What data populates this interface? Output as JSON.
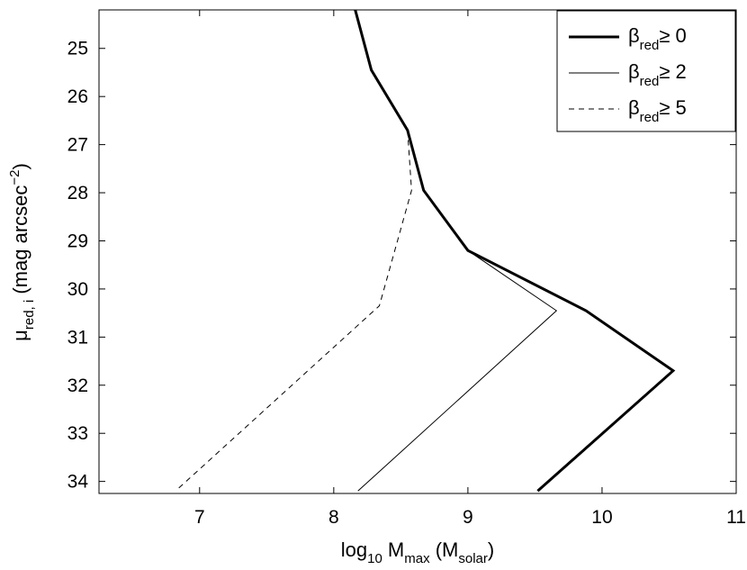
{
  "chart_data": {
    "type": "line",
    "xlabel": {
      "base": "log",
      "sub1": "10",
      "mid": " M",
      "sub2": "max",
      "mid2": " (M",
      "sub3": "solar",
      "end": ")"
    },
    "ylabel": {
      "base": "μ",
      "sub": "red, i",
      "rest": " (mag arcsec",
      "sup": "−2",
      "end": ")"
    },
    "xlim": [
      6.25,
      11
    ],
    "ylim": [
      34.25,
      24.2
    ],
    "y_inverted": true,
    "xticks": [
      7,
      8,
      9,
      10,
      11
    ],
    "yticks": [
      25,
      26,
      27,
      28,
      29,
      30,
      31,
      32,
      33,
      34
    ],
    "grid": false,
    "legend_position": "top-right",
    "series": [
      {
        "name": "β_red≥ 0",
        "legend": {
          "sym": "β",
          "sub": "red",
          "rest": "≥ 0"
        },
        "style": "solid-thick",
        "x": [
          8.16,
          8.28,
          8.55,
          8.67,
          9.0,
          9.88,
          10.53,
          9.52
        ],
        "y": [
          24.2,
          25.45,
          26.7,
          27.95,
          29.2,
          30.45,
          31.7,
          34.2
        ]
      },
      {
        "name": "β_red≥ 2",
        "legend": {
          "sym": "β",
          "sub": "red",
          "rest": "≥ 2"
        },
        "style": "solid-thin",
        "x": [
          8.16,
          8.28,
          8.55,
          8.67,
          9.0,
          9.66,
          8.18
        ],
        "y": [
          24.2,
          25.45,
          26.7,
          27.95,
          29.2,
          30.45,
          34.2
        ]
      },
      {
        "name": "β_red≥ 5",
        "legend": {
          "sym": "β",
          "sub": "red",
          "rest": "≥ 5"
        },
        "style": "dashed",
        "x": [
          8.55,
          8.58,
          8.34,
          6.82
        ],
        "y": [
          26.7,
          27.95,
          30.35,
          34.2
        ]
      }
    ]
  }
}
